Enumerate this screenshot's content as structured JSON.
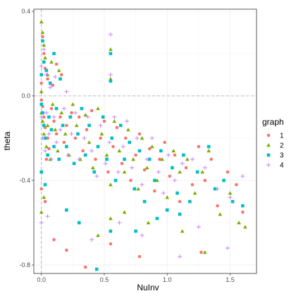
{
  "chart_data": {
    "type": "scatter",
    "title": "",
    "xlabel": "NuInv",
    "ylabel": "theta",
    "xlim": [
      -0.06,
      1.71
    ],
    "ylim": [
      -0.84,
      0.41
    ],
    "xticks": [
      0.0,
      0.5,
      1.0,
      1.5
    ],
    "xtick_labels": [
      "0.0",
      "0.5",
      "1.0",
      "1.5"
    ],
    "yticks": [
      -0.8,
      -0.4,
      0.0,
      0.4
    ],
    "ytick_labels": [
      "-0.8",
      "-0.4",
      "0.0",
      "0.4"
    ],
    "grid": true,
    "reference_lines": {
      "x": 0.0,
      "y": 0.0,
      "style": "dashed"
    },
    "legend": {
      "title": "graph",
      "placement": "right",
      "entries": [
        "1",
        "2",
        "3",
        "4"
      ]
    },
    "series": [
      {
        "name": "1",
        "color": "#F8766D",
        "shape": "circle",
        "points": [
          [
            0.01,
            0.28
          ],
          [
            0.02,
            0.2
          ],
          [
            0.03,
            0.13
          ],
          [
            0.05,
            0.08
          ],
          [
            0.09,
            0.05
          ],
          [
            0.12,
            0.15
          ],
          [
            0.16,
            0.1
          ],
          [
            0.0,
            -0.02
          ],
          [
            0.01,
            -0.05
          ],
          [
            0.02,
            -0.1
          ],
          [
            0.03,
            -0.15
          ],
          [
            0.05,
            -0.2
          ],
          [
            0.06,
            -0.25
          ],
          [
            0.08,
            -0.06
          ],
          [
            0.1,
            -0.12
          ],
          [
            0.12,
            -0.18
          ],
          [
            0.15,
            -0.1
          ],
          [
            0.18,
            -0.22
          ],
          [
            0.2,
            -0.14
          ],
          [
            0.24,
            -0.08
          ],
          [
            0.27,
            -0.2
          ],
          [
            0.3,
            -0.1
          ],
          [
            0.33,
            -0.26
          ],
          [
            0.36,
            -0.16
          ],
          [
            0.4,
            -0.07
          ],
          [
            0.43,
            -0.3
          ],
          [
            0.47,
            -0.2
          ],
          [
            0.5,
            -0.12
          ],
          [
            0.53,
            -0.36
          ],
          [
            0.57,
            -0.24
          ],
          [
            0.6,
            -0.15
          ],
          [
            0.64,
            -0.32
          ],
          [
            0.67,
            -0.2
          ],
          [
            0.71,
            -0.4
          ],
          [
            0.75,
            -0.28
          ],
          [
            0.78,
            -0.18
          ],
          [
            0.82,
            -0.35
          ],
          [
            0.86,
            -0.25
          ],
          [
            0.9,
            -0.45
          ],
          [
            0.94,
            -0.3
          ],
          [
            0.98,
            -0.22
          ],
          [
            1.02,
            -0.38
          ],
          [
            1.06,
            -0.28
          ],
          [
            1.1,
            -0.5
          ],
          [
            1.15,
            -0.34
          ],
          [
            1.2,
            -0.42
          ],
          [
            1.25,
            -0.24
          ],
          [
            1.3,
            -0.4
          ],
          [
            1.35,
            -0.3
          ],
          [
            1.4,
            -0.52
          ],
          [
            1.48,
            -0.36
          ],
          [
            1.55,
            -0.42
          ],
          [
            1.6,
            -0.55
          ],
          [
            0.1,
            -0.68
          ],
          [
            0.2,
            -0.73
          ],
          [
            0.35,
            -0.81
          ],
          [
            0.55,
            -0.7
          ],
          [
            0.78,
            -0.76
          ],
          [
            1.27,
            -0.74
          ],
          [
            0.0,
            -0.44
          ],
          [
            0.03,
            -0.5
          ],
          [
            0.0,
            0.06
          ],
          [
            0.04,
            -0.3
          ]
        ]
      },
      {
        "name": "2",
        "color": "#7CAE00",
        "shape": "triangle",
        "points": [
          [
            0.0,
            0.35
          ],
          [
            0.01,
            0.3
          ],
          [
            0.02,
            0.24
          ],
          [
            0.03,
            0.18
          ],
          [
            0.05,
            0.1
          ],
          [
            0.08,
            0.16
          ],
          [
            0.14,
            0.12
          ],
          [
            0.0,
            -0.08
          ],
          [
            0.01,
            -0.12
          ],
          [
            0.02,
            -0.18
          ],
          [
            0.04,
            -0.24
          ],
          [
            0.05,
            -0.14
          ],
          [
            0.07,
            -0.3
          ],
          [
            0.09,
            -0.04
          ],
          [
            0.11,
            -0.16
          ],
          [
            0.13,
            -0.26
          ],
          [
            0.16,
            -0.08
          ],
          [
            0.19,
            -0.18
          ],
          [
            0.22,
            -0.28
          ],
          [
            0.25,
            -0.04
          ],
          [
            0.28,
            -0.14
          ],
          [
            0.31,
            -0.3
          ],
          [
            0.35,
            -0.09
          ],
          [
            0.38,
            -0.22
          ],
          [
            0.41,
            -0.34
          ],
          [
            0.45,
            -0.06
          ],
          [
            0.48,
            -0.18
          ],
          [
            0.52,
            -0.28
          ],
          [
            0.55,
            -0.42
          ],
          [
            0.58,
            -0.12
          ],
          [
            0.62,
            -0.26
          ],
          [
            0.66,
            -0.36
          ],
          [
            0.69,
            -0.16
          ],
          [
            0.73,
            -0.3
          ],
          [
            0.77,
            -0.44
          ],
          [
            0.8,
            -0.2
          ],
          [
            0.84,
            -0.34
          ],
          [
            0.88,
            -0.24
          ],
          [
            0.92,
            -0.4
          ],
          [
            0.96,
            -0.3
          ],
          [
            1.0,
            -0.48
          ],
          [
            1.05,
            -0.26
          ],
          [
            1.1,
            -0.36
          ],
          [
            1.16,
            -0.3
          ],
          [
            1.22,
            -0.46
          ],
          [
            1.28,
            -0.36
          ],
          [
            1.33,
            -0.26
          ],
          [
            1.42,
            -0.56
          ],
          [
            1.5,
            -0.46
          ],
          [
            1.57,
            -0.6
          ],
          [
            1.62,
            -0.62
          ],
          [
            0.45,
            -0.66
          ],
          [
            0.55,
            -0.58
          ],
          [
            0.66,
            -0.55
          ],
          [
            0.85,
            -0.6
          ],
          [
            1.12,
            -0.64
          ],
          [
            1.3,
            -0.74
          ],
          [
            0.0,
            -0.55
          ],
          [
            0.02,
            -0.48
          ],
          [
            0.0,
            0.02
          ],
          [
            0.55,
            0.22
          ],
          [
            0.55,
            0.08
          ]
        ]
      },
      {
        "name": "3",
        "color": "#00BFC4",
        "shape": "square",
        "points": [
          [
            0.01,
            0.26
          ],
          [
            0.02,
            0.16
          ],
          [
            0.04,
            0.12
          ],
          [
            0.07,
            0.06
          ],
          [
            0.1,
            0.2
          ],
          [
            0.15,
            0.08
          ],
          [
            0.0,
            -0.04
          ],
          [
            0.01,
            -0.08
          ],
          [
            0.02,
            -0.14
          ],
          [
            0.03,
            -0.2
          ],
          [
            0.05,
            -0.28
          ],
          [
            0.06,
            -0.1
          ],
          [
            0.08,
            -0.16
          ],
          [
            0.1,
            -0.24
          ],
          [
            0.12,
            -0.06
          ],
          [
            0.14,
            -0.3
          ],
          [
            0.17,
            -0.14
          ],
          [
            0.2,
            -0.24
          ],
          [
            0.23,
            -0.1
          ],
          [
            0.26,
            -0.32
          ],
          [
            0.29,
            -0.18
          ],
          [
            0.32,
            -0.06
          ],
          [
            0.35,
            -0.28
          ],
          [
            0.38,
            -0.14
          ],
          [
            0.42,
            -0.36
          ],
          [
            0.45,
            -0.24
          ],
          [
            0.49,
            -0.1
          ],
          [
            0.52,
            -0.3
          ],
          [
            0.56,
            -0.2
          ],
          [
            0.59,
            -0.4
          ],
          [
            0.63,
            -0.14
          ],
          [
            0.66,
            -0.3
          ],
          [
            0.7,
            -0.22
          ],
          [
            0.74,
            -0.44
          ],
          [
            0.78,
            -0.26
          ],
          [
            0.82,
            -0.5
          ],
          [
            0.86,
            -0.3
          ],
          [
            0.9,
            -0.4
          ],
          [
            0.95,
            -0.26
          ],
          [
            1.0,
            -0.54
          ],
          [
            1.04,
            -0.34
          ],
          [
            1.08,
            -0.46
          ],
          [
            1.13,
            -0.28
          ],
          [
            1.18,
            -0.5
          ],
          [
            1.24,
            -0.36
          ],
          [
            1.33,
            -0.24
          ],
          [
            1.38,
            -0.44
          ],
          [
            1.45,
            -0.4
          ],
          [
            1.52,
            -0.5
          ],
          [
            1.6,
            -0.52
          ],
          [
            0.2,
            -0.54
          ],
          [
            0.3,
            -0.6
          ],
          [
            0.44,
            -0.82
          ],
          [
            0.55,
            -0.64
          ],
          [
            0.75,
            -0.64
          ],
          [
            0.92,
            -0.58
          ],
          [
            1.1,
            -0.56
          ],
          [
            0.55,
            0.2
          ],
          [
            0.55,
            0.07
          ],
          [
            0.0,
            0.1
          ],
          [
            0.03,
            -0.42
          ],
          [
            0.0,
            -0.36
          ]
        ]
      },
      {
        "name": "4",
        "color": "#C77CFF",
        "shape": "plus",
        "points": [
          [
            0.02,
            0.22
          ],
          [
            0.04,
            0.1
          ],
          [
            0.07,
            0.04
          ],
          [
            0.11,
            0.09
          ],
          [
            0.2,
            0.02
          ],
          [
            0.0,
            -0.1
          ],
          [
            0.01,
            -0.2
          ],
          [
            0.03,
            -0.26
          ],
          [
            0.04,
            -0.08
          ],
          [
            0.06,
            -0.18
          ],
          [
            0.08,
            -0.3
          ],
          [
            0.1,
            -0.1
          ],
          [
            0.12,
            -0.22
          ],
          [
            0.15,
            -0.16
          ],
          [
            0.18,
            -0.06
          ],
          [
            0.21,
            -0.28
          ],
          [
            0.24,
            -0.18
          ],
          [
            0.27,
            -0.08
          ],
          [
            0.3,
            -0.3
          ],
          [
            0.34,
            -0.2
          ],
          [
            0.37,
            -0.1
          ],
          [
            0.4,
            -0.26
          ],
          [
            0.44,
            -0.38
          ],
          [
            0.47,
            -0.14
          ],
          [
            0.51,
            -0.32
          ],
          [
            0.54,
            -0.22
          ],
          [
            0.58,
            -0.1
          ],
          [
            0.61,
            -0.36
          ],
          [
            0.65,
            -0.24
          ],
          [
            0.68,
            -0.12
          ],
          [
            0.72,
            -0.34
          ],
          [
            0.76,
            -0.2
          ],
          [
            0.8,
            -0.42
          ],
          [
            0.84,
            -0.3
          ],
          [
            0.88,
            -0.2
          ],
          [
            0.93,
            -0.36
          ],
          [
            0.97,
            -0.46
          ],
          [
            1.01,
            -0.28
          ],
          [
            1.06,
            -0.4
          ],
          [
            1.12,
            -0.32
          ],
          [
            1.2,
            -0.3
          ],
          [
            1.3,
            -0.34
          ],
          [
            1.4,
            -0.44
          ],
          [
            1.5,
            -0.48
          ],
          [
            1.6,
            -0.38
          ],
          [
            0.0,
            -0.6
          ],
          [
            0.05,
            -0.57
          ],
          [
            0.4,
            -0.68
          ],
          [
            0.62,
            -0.6
          ],
          [
            0.8,
            -0.66
          ],
          [
            1.1,
            -0.76
          ],
          [
            1.25,
            -0.62
          ],
          [
            1.48,
            -0.72
          ],
          [
            0.55,
            0.29
          ],
          [
            0.55,
            0.1
          ],
          [
            0.0,
            0.14
          ]
        ]
      }
    ]
  }
}
